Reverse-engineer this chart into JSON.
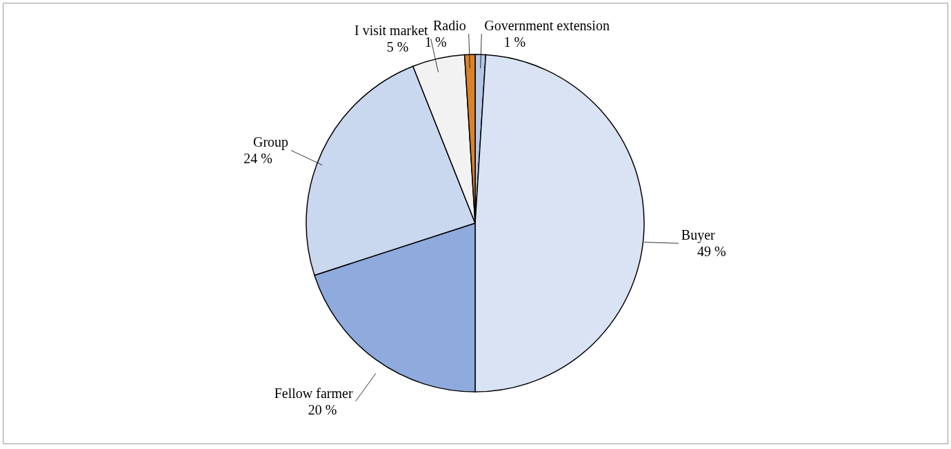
{
  "chart_data": {
    "type": "pie",
    "categories": [
      "Government extension",
      "Buyer",
      "Fellow farmer",
      "Group",
      "I visit market",
      "Radio"
    ],
    "values": [
      1,
      49,
      20,
      24,
      5,
      1
    ],
    "value_labels": [
      "1 %",
      "49 %",
      "20 %",
      "24 %",
      "5 %",
      "1 %"
    ],
    "colors": [
      "#b4c7e7",
      "#dae3f3",
      "#8faadc",
      "#c9d7ef",
      "#f2f2f2",
      "#d9822b"
    ]
  }
}
